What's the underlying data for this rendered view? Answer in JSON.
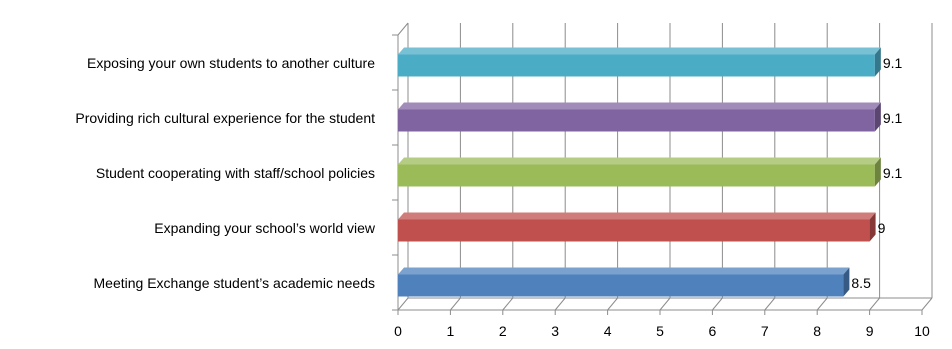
{
  "chart_data": {
    "type": "bar",
    "orientation": "horizontal",
    "style": "3d",
    "categories": [
      "Exposing your own students to another culture",
      "Providing rich cultural experience for the student",
      "Student cooperating with staff/school policies",
      "Expanding your school’s world view",
      "Meeting Exchange student’s academic needs"
    ],
    "values": [
      9.1,
      9.1,
      9.1,
      9,
      8.5
    ],
    "value_labels": [
      "9.1",
      "9.1",
      "9.1",
      "9",
      "8.5"
    ],
    "colors": [
      "#4BACC6",
      "#8064A2",
      "#9BBB59",
      "#C0504D",
      "#4F81BD"
    ],
    "xlim": [
      0,
      10
    ],
    "xticks": [
      "0",
      "1",
      "2",
      "3",
      "4",
      "5",
      "6",
      "7",
      "8",
      "9",
      "10"
    ],
    "grid": true,
    "legend": "none",
    "title": "",
    "xlabel": "",
    "ylabel": ""
  }
}
